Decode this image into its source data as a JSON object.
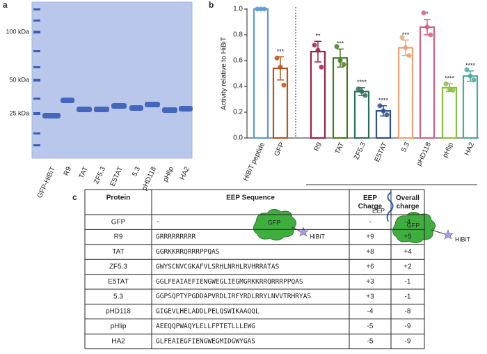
{
  "panel_a": {
    "label": "a",
    "ladder": [
      "100 kDa",
      "50 kDa",
      "25 kDa"
    ],
    "lanes": [
      "GFP-HiBiT",
      "R9",
      "TAT",
      "ZF5.3",
      "E5TAT",
      "5.3",
      "pHD118",
      "pHlip",
      "HA2"
    ]
  },
  "chart_data": {
    "type": "bar",
    "panel_label": "b",
    "ylabel": "Activity relative to HiBiT",
    "categories": [
      "HiBiT peptide",
      "GFP",
      "R9",
      "TAT",
      "ZF5.3",
      "E5TAT",
      "5.3",
      "pHD118",
      "pHlip",
      "HA2"
    ],
    "values": [
      1.0,
      0.54,
      0.67,
      0.62,
      0.36,
      0.21,
      0.7,
      0.86,
      0.39,
      0.48
    ],
    "errors": [
      0,
      0.09,
      0.08,
      0.07,
      0.03,
      0.04,
      0.06,
      0.06,
      0.03,
      0.04
    ],
    "points": [
      [
        1.0,
        1.0,
        1.0
      ],
      [
        0.62,
        0.55,
        0.41
      ],
      [
        0.72,
        0.68,
        0.55
      ],
      [
        0.71,
        0.6,
        0.57
      ],
      [
        0.38,
        0.36,
        0.33
      ],
      [
        0.25,
        0.21,
        0.18
      ],
      [
        0.78,
        0.7,
        0.64
      ],
      [
        0.97,
        0.86,
        0.8
      ],
      [
        0.42,
        0.38,
        0.37
      ],
      [
        0.53,
        0.48,
        0.45
      ]
    ],
    "significance": [
      null,
      "***",
      "**",
      "***",
      "****",
      "****",
      "***",
      "*",
      "****",
      "****"
    ],
    "colors": [
      "#5b9bd5",
      "#b5541c",
      "#9b2048",
      "#4a7a20",
      "#2a6e5e",
      "#2f4f8f",
      "#f0a070",
      "#d0608a",
      "#8cbf3f",
      "#4aaa9a"
    ],
    "ylim": [
      0,
      1.0
    ],
    "yticks": [
      {
        "value": 0,
        "label": "0.0"
      },
      0.2,
      0.4,
      0.6,
      0.8,
      {
        "value": 1.0,
        "label": "1.0"
      }
    ]
  },
  "diagram": {
    "left": {
      "protein": "GFP",
      "tag": "HiBiT"
    },
    "right": {
      "peptide": "EEP",
      "protein": "GFP",
      "tag": "HiBiT"
    }
  },
  "table": {
    "panel_label": "c",
    "header": [
      "Protein",
      "EEP Sequence",
      "EEP Charge",
      "Overall charge"
    ],
    "rows": [
      [
        "GFP",
        "-",
        "-",
        "-4"
      ],
      [
        "R9",
        "GRRRRRRRRR",
        "+9",
        "+5"
      ],
      [
        "TAT",
        "GGRKKRRQRRRPPQAS",
        "+8",
        "+4"
      ],
      [
        "ZF5.3",
        "GWYSCNVCGKAFVLSRHLNRHLRVHRRATAS",
        "+6",
        "+2"
      ],
      [
        "E5TAT",
        "GGLFEAIAEFIENGWEGLIEGMGRKKRRQRRRPPQAS",
        "+3",
        "-1"
      ],
      [
        "5.3",
        "GGPSQPTYPGDDAPVRDLIRFYRDLRRYLNVVTRHRYAS",
        "+3",
        "-1"
      ],
      [
        "pHD118",
        "GIGEVLHELADDLPELQSWIKAAQQL",
        "-4",
        "-8"
      ],
      [
        "pHlip",
        "AEEQQPWAQYLELLFPTETLLLEWG",
        "-5",
        "-9"
      ],
      [
        "HA2",
        "GLFEAIEGFIENGWEGMIDGWYGAS",
        "-5",
        "-9"
      ]
    ]
  }
}
